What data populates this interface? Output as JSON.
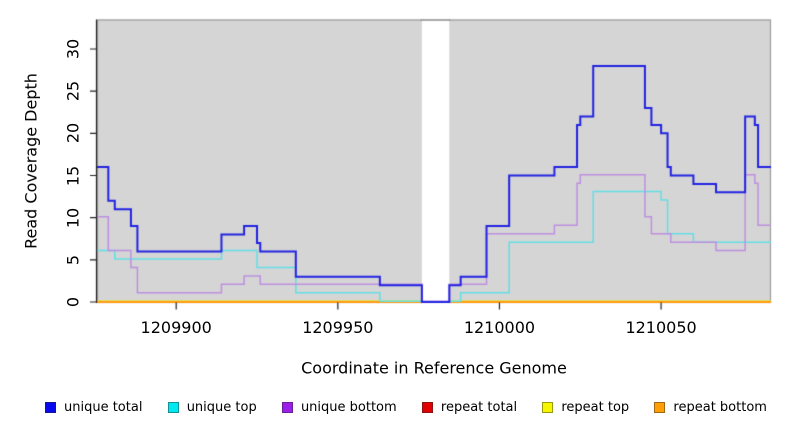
{
  "chart_data": {
    "type": "line",
    "subtype": "step",
    "title": "",
    "xlabel": "Coordinate in Reference Genome",
    "ylabel": "Read Coverage Depth",
    "xlim": [
      1209875.5,
      1210084
    ],
    "ylim": [
      0,
      33.5
    ],
    "grid": false,
    "panel_bg": "#d5d5d5",
    "panel_border": "#9d9d9d",
    "axis_color": "#222222",
    "x_ticks": [
      {
        "value": 1209900,
        "label": "1209900"
      },
      {
        "value": 1209950,
        "label": "1209950"
      },
      {
        "value": 1210000,
        "label": "1210000"
      },
      {
        "value": 1210050,
        "label": "1210050"
      }
    ],
    "y_ticks": [
      {
        "value": 0,
        "label": "0"
      },
      {
        "value": 5,
        "label": "5"
      },
      {
        "value": 10,
        "label": "10"
      },
      {
        "value": 15,
        "label": "15"
      },
      {
        "value": 20,
        "label": "20"
      },
      {
        "value": 25,
        "label": "25"
      },
      {
        "value": 30,
        "label": "30"
      }
    ],
    "masked_region": {
      "x_from": 1209976,
      "x_to": 1209984.5,
      "color": "#ffffff",
      "cap_color": "#8a8a8a"
    },
    "series": [
      {
        "name": "unique total",
        "color": "#2323e2",
        "width": 2,
        "points": [
          [
            1209875.5,
            16
          ],
          [
            1209879,
            12
          ],
          [
            1209881,
            11
          ],
          [
            1209886,
            9
          ],
          [
            1209888,
            6
          ],
          [
            1209914,
            8
          ],
          [
            1209921,
            9
          ],
          [
            1209925,
            7
          ],
          [
            1209926,
            6
          ],
          [
            1209937,
            3
          ],
          [
            1209963,
            2
          ],
          [
            1209976,
            0
          ],
          [
            1209984.5,
            2
          ],
          [
            1209988,
            3
          ],
          [
            1209996,
            9
          ],
          [
            1210003,
            15
          ],
          [
            1210017,
            16
          ],
          [
            1210024,
            21
          ],
          [
            1210025,
            22
          ],
          [
            1210029,
            28
          ],
          [
            1210045,
            23
          ],
          [
            1210047,
            21
          ],
          [
            1210050,
            20
          ],
          [
            1210052,
            16
          ],
          [
            1210053,
            15
          ],
          [
            1210060,
            14
          ],
          [
            1210067,
            13
          ],
          [
            1210076,
            22
          ],
          [
            1210079,
            21
          ],
          [
            1210080,
            16
          ]
        ]
      },
      {
        "name": "unique top",
        "color": "#63dfe6",
        "width": 1.5,
        "points": [
          [
            1209875.5,
            6
          ],
          [
            1209881,
            5
          ],
          [
            1209914,
            6
          ],
          [
            1209925,
            4
          ],
          [
            1209937,
            1
          ],
          [
            1209963,
            0
          ],
          [
            1209988,
            1
          ],
          [
            1210003,
            7
          ],
          [
            1210029,
            13
          ],
          [
            1210050,
            12
          ],
          [
            1210052,
            8
          ],
          [
            1210060,
            7
          ]
        ]
      },
      {
        "name": "unique bottom",
        "color": "#bd90e0",
        "width": 1.5,
        "points": [
          [
            1209875.5,
            10
          ],
          [
            1209879,
            6
          ],
          [
            1209886,
            4
          ],
          [
            1209888,
            1
          ],
          [
            1209914,
            2
          ],
          [
            1209921,
            3
          ],
          [
            1209926,
            2
          ],
          [
            1209976,
            0
          ],
          [
            1209984.5,
            2
          ],
          [
            1209996,
            8
          ],
          [
            1210017,
            9
          ],
          [
            1210024,
            14
          ],
          [
            1210025,
            15
          ],
          [
            1210045,
            10
          ],
          [
            1210047,
            8
          ],
          [
            1210053,
            7
          ],
          [
            1210067,
            6
          ],
          [
            1210076,
            15
          ],
          [
            1210079,
            14
          ],
          [
            1210080,
            9
          ]
        ]
      },
      {
        "name": "repeat total",
        "color": "#e00000",
        "width": 1.5,
        "points": [
          [
            1209875.5,
            0
          ]
        ]
      },
      {
        "name": "repeat top",
        "color": "#f0f000",
        "width": 1.5,
        "points": [
          [
            1209875.5,
            0
          ]
        ]
      },
      {
        "name": "repeat bottom",
        "color": "#ff9a0e",
        "width": 2,
        "points": [
          [
            1209875.5,
            0
          ]
        ]
      }
    ],
    "legend": {
      "position": "bottom",
      "items": [
        {
          "label": "unique total",
          "color": "#0808ec"
        },
        {
          "label": "unique top",
          "color": "#00e8f0"
        },
        {
          "label": "unique bottom",
          "color": "#9b1fe8"
        },
        {
          "label": "repeat total",
          "color": "#e00000"
        },
        {
          "label": "repeat top",
          "color": "#f5f500"
        },
        {
          "label": "repeat bottom",
          "color": "#ff9e05"
        }
      ]
    }
  }
}
